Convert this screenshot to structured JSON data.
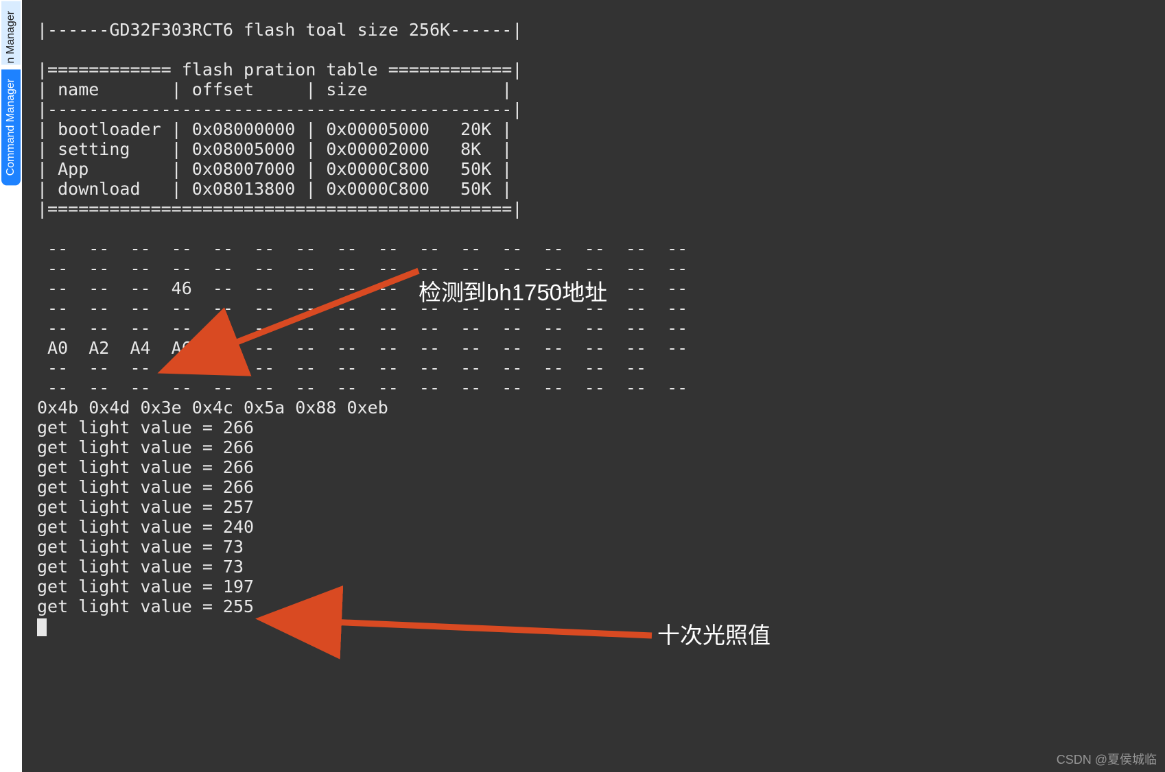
{
  "colors": {
    "terminal_bg": "#333333",
    "terminal_fg": "#e8e8e8",
    "tab_active_bg": "#1e82ff",
    "tab_active_fg": "#ffffff",
    "tab_inactive_bg": "#d9ecff",
    "tab_inactive_fg": "#1c1c1c",
    "arrow_color": "#d94a22",
    "watermark_color": "rgba(230,230,230,0.55)"
  },
  "rail": {
    "tabs": [
      {
        "label": "n Manager",
        "active": false,
        "partial": true
      },
      {
        "label": "Command Manager",
        "active": true,
        "partial": false
      }
    ]
  },
  "terminal": {
    "header_line": "|------GD32F303RCT6 flash toal size 256K------|",
    "table_title": "|============ flash pration table ============|",
    "table_header": "| name       | offset     | size             |",
    "table_divider1": "|---------------------------------------------|",
    "table_rows": [
      "| bootloader | 0x08000000 | 0x00005000   20K |",
      "| setting    | 0x08005000 | 0x00002000   8K  |",
      "| App        | 0x08007000 | 0x0000C800   50K |",
      "| download   | 0x08013800 | 0x0000C800   50K |"
    ],
    "table_divider2": "|=============================================|",
    "i2c_scan": [
      " --  --  --  --  --  --  --  --  --  --  --  --  --  --  --  --",
      " --  --  --  --  --  --  --  --  --  --  --  --  --  --  --  --",
      " --  --  --  46  --  --  --  --  --  --  --  --  --  --  --  --",
      " --  --  --  --  --  --  --  --  --  --  --  --  --  --  --  --",
      " --  --  --  --  --  --  --  --  --  --  --  --  --  --  --  --",
      " A0  A2  A4  A6  --  --  --  --  --  --  --  --  --  --  --  --",
      " --  --  --  --  --  --  --  --  --  --  --  --  --  --  --",
      " --  --  --  --  --  --  --  --  --  --  --  --  --  --  --  --"
    ],
    "hex_line": "0x4b 0x4d 0x3e 0x4c 0x5a 0x88 0xeb",
    "light_values": [
      266,
      266,
      266,
      266,
      257,
      240,
      73,
      73,
      197,
      255
    ],
    "light_prefix": "get light value = "
  },
  "annotations": {
    "top": {
      "label": "检测到bh1750地址"
    },
    "bottom": {
      "label": "十次光照值"
    }
  },
  "watermark": "CSDN @夏侯城临"
}
